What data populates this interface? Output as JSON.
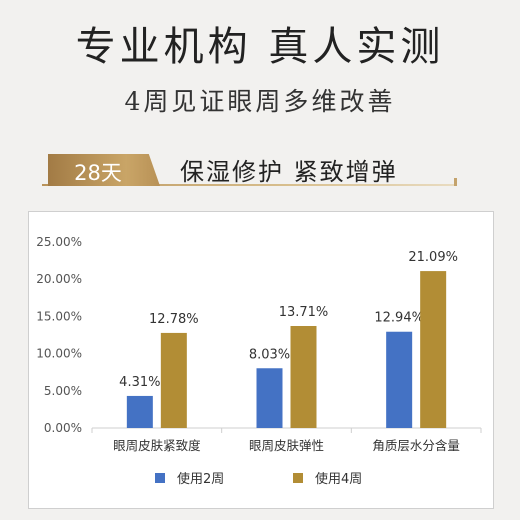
{
  "header": {
    "title": "专业机构 真人实测",
    "subtitle": "4周见证眼周多维改善"
  },
  "banner": {
    "badge": "28天",
    "tagline": "保湿修护 紧致增弹"
  },
  "colors": {
    "gold": "#b28d35",
    "blue": "#4472c4"
  },
  "chart_data": {
    "type": "bar",
    "categories": [
      "眼周皮肤紧致度",
      "眼周皮肤弹性",
      "角质层水分含量"
    ],
    "series": [
      {
        "name": "使用2周",
        "values": [
          4.31,
          8.03,
          12.94
        ],
        "labels": [
          "4.31%",
          "8.03%",
          "12.94%"
        ],
        "color": "#4472c4"
      },
      {
        "name": "使用4周",
        "values": [
          12.78,
          13.71,
          21.09
        ],
        "labels": [
          "12.78%",
          "13.71%",
          "21.09%"
        ],
        "color": "#b28d35"
      }
    ],
    "yticks": [
      "0.00%",
      "5.00%",
      "10.00%",
      "15.00%",
      "20.00%",
      "25.00%"
    ],
    "ylim": [
      0,
      25
    ],
    "grid": false,
    "legend": "bottom"
  }
}
